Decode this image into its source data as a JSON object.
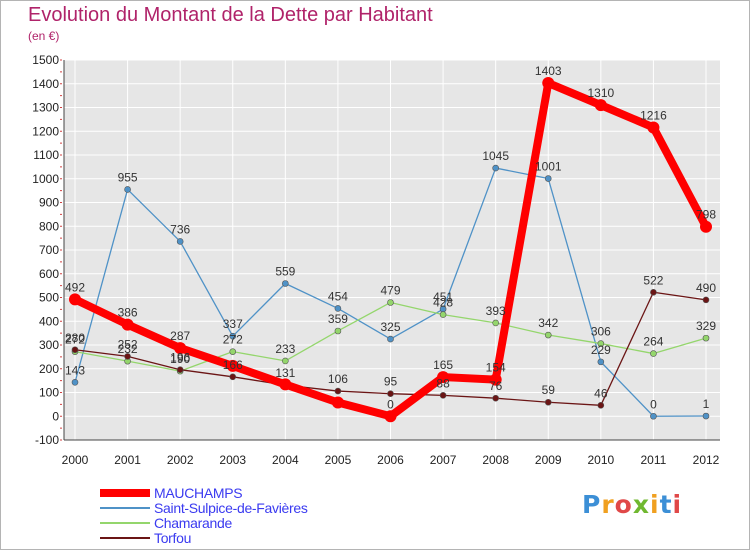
{
  "chart_data": {
    "type": "line",
    "title": "Evolution du Montant de la Dette par Habitant",
    "subtitle": "(en €)",
    "categories": [
      "2000",
      "2001",
      "2002",
      "2003",
      "2004",
      "2005",
      "2006",
      "2007",
      "2008",
      "2009",
      "2010",
      "2011",
      "2012"
    ],
    "ylim": [
      -100,
      1500
    ],
    "yticks": [
      -100,
      0,
      100,
      200,
      300,
      400,
      500,
      600,
      700,
      800,
      900,
      1000,
      1100,
      1200,
      1300,
      1400,
      1500
    ],
    "grid": true,
    "legend_position": "bottom-left",
    "series": [
      {
        "name": "MAUCHAMPS",
        "color": "#ff0000",
        "values": [
          492,
          386,
          287,
          212,
          134,
          58,
          0,
          165,
          154,
          1403,
          1310,
          1216,
          798
        ],
        "labels": [
          "492",
          "386",
          "287",
          "",
          "",
          "",
          "0",
          "165",
          "154",
          "1403",
          "1310",
          "1216",
          "798"
        ]
      },
      {
        "name": "Saint-Sulpice-de-Favières",
        "color": "#4f92c7",
        "values": [
          143,
          955,
          736,
          337,
          559,
          454,
          325,
          451,
          1045,
          1001,
          229,
          0,
          1
        ],
        "labels": [
          "143",
          "955",
          "736",
          "337",
          "559",
          "454",
          "325",
          "451",
          "1045",
          "1001",
          "229",
          "0",
          "1"
        ]
      },
      {
        "name": "Chamarande",
        "color": "#94d66c",
        "values": [
          272,
          232,
          190,
          272,
          233,
          359,
          479,
          428,
          393,
          342,
          306,
          264,
          329
        ],
        "labels": [
          "272",
          "232",
          "190",
          "272",
          "233",
          "359",
          "479",
          "428",
          "393",
          "342",
          "306",
          "264",
          "329"
        ]
      },
      {
        "name": "Torfou",
        "color": "#6b1515",
        "values": [
          280,
          252,
          196,
          166,
          131,
          106,
          95,
          88,
          76,
          59,
          46,
          522,
          490
        ],
        "labels": [
          "280",
          "252",
          "196",
          "166",
          "131",
          "106",
          "95",
          "88",
          "76",
          "59",
          "46",
          "522",
          "490"
        ]
      }
    ]
  },
  "legend": {
    "items": [
      {
        "label": "MAUCHAMPS",
        "color": "#ff0000"
      },
      {
        "label": "Saint-Sulpice-de-Favières",
        "color": "#4f92c7"
      },
      {
        "label": "Chamarande",
        "color": "#94d66c"
      },
      {
        "label": "Torfou",
        "color": "#6b1515"
      }
    ]
  },
  "logo": {
    "letters": [
      {
        "char": "P",
        "color": "#3c8fd6"
      },
      {
        "char": "r",
        "color": "#f0a020"
      },
      {
        "char": "o",
        "color": "#e04848"
      },
      {
        "char": "x",
        "color": "#70b830"
      },
      {
        "char": "i",
        "color": "#f0a020"
      },
      {
        "char": "t",
        "color": "#3c8fd6"
      },
      {
        "char": "i",
        "color": "#e04848"
      }
    ]
  }
}
